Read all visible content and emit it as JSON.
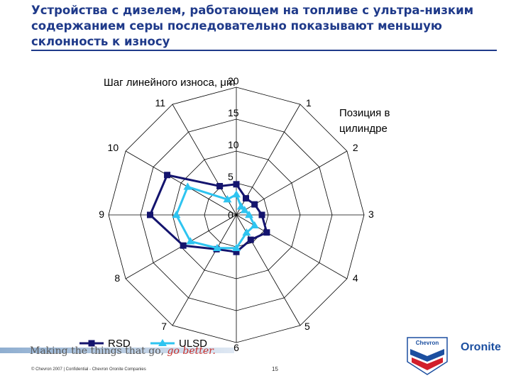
{
  "slide": {
    "title": "Устройства с дизелем, работающем на топливе с ультра-низким содержанием серы последовательно показывают меньшую склонность к износу",
    "tagline_start": "Making the things that go, ",
    "tagline_accent": "go better.",
    "copyright": "© Chevron 2007  |  Confidential - Chevron Oronite Companies",
    "page_number": "15",
    "chevron_logo_text": "Chevron",
    "brand": "Oronite"
  },
  "chart_data": {
    "type": "radar",
    "title": "Шаг линейного износа, μm",
    "axis_title": "Позиция в цилиндре",
    "categories": [
      "1",
      "2",
      "3",
      "4",
      "5",
      "6",
      "7",
      "8",
      "9",
      "10",
      "11",
      "12"
    ],
    "rlim": [
      0,
      20
    ],
    "ticks": [
      0,
      5,
      10,
      15,
      20
    ],
    "tick_labels": [
      "0",
      "5",
      "10",
      "15",
      "20"
    ],
    "grid": true,
    "legend_position": "bottom-left",
    "series": [
      {
        "name": "RSD",
        "color": "#14146e",
        "marker": "square",
        "values": [
          3,
          3.3,
          4,
          5.5,
          4.5,
          5.8,
          6.2,
          9.6,
          13.5,
          12.5,
          5.2,
          4.8
        ]
      },
      {
        "name": "ULSD",
        "color": "#2ec4f0",
        "marker": "triangle",
        "values": [
          1.5,
          1.5,
          2,
          3.3,
          3.2,
          5.2,
          6,
          8.3,
          9.4,
          8.8,
          2.8,
          3.2
        ]
      }
    ]
  }
}
